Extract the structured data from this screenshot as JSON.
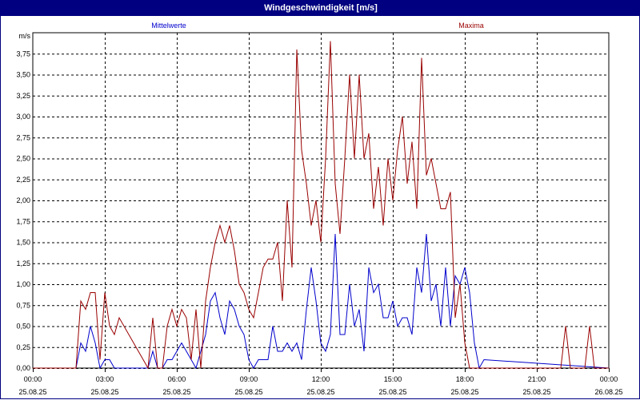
{
  "window": {
    "title": "Windgeschwindigkeit [m/s]"
  },
  "chart_data": {
    "type": "line",
    "title": "Windgeschwindigkeit [m/s]",
    "ylabel": "m/s",
    "ylim": [
      0,
      4.0
    ],
    "xlim": [
      0,
      24
    ],
    "grid": true,
    "y_ticks": [
      "0,00",
      "0,25",
      "0,50",
      "0,75",
      "1,00",
      "1,25",
      "1,50",
      "1,75",
      "2,00",
      "2,25",
      "2,50",
      "2,75",
      "3,00",
      "3,25",
      "3,50",
      "3,75"
    ],
    "x_ticks": [
      {
        "time": "00:00",
        "date": "25.08.25"
      },
      {
        "time": "03:00",
        "date": "25.08.25"
      },
      {
        "time": "06:00",
        "date": "25.08.25"
      },
      {
        "time": "09:00",
        "date": "25.08.25"
      },
      {
        "time": "12:00",
        "date": "25.08.25"
      },
      {
        "time": "15:00",
        "date": "25.08.25"
      },
      {
        "time": "18:00",
        "date": "25.08.25"
      },
      {
        "time": "21:00",
        "date": "25.08.25"
      },
      {
        "time": "00:00",
        "date": "26.08.25"
      }
    ],
    "colors": {
      "Mittelwerte": "#0000cc",
      "Maxima": "#990000",
      "titlebar": "#000080"
    },
    "series": [
      {
        "name": "Mittelwerte",
        "color": "#0000cc",
        "x": [
          0,
          1.8,
          2.0,
          2.2,
          2.4,
          2.6,
          2.8,
          3.0,
          3.2,
          3.4,
          4.8,
          5.0,
          5.2,
          5.4,
          5.6,
          5.8,
          6.0,
          6.2,
          6.4,
          6.6,
          6.8,
          7.0,
          7.2,
          7.4,
          7.6,
          7.8,
          8.0,
          8.2,
          8.4,
          8.6,
          8.8,
          9.0,
          9.2,
          9.4,
          9.6,
          9.8,
          10.0,
          10.2,
          10.4,
          10.6,
          10.8,
          11.0,
          11.2,
          11.4,
          11.6,
          11.8,
          12.0,
          12.2,
          12.4,
          12.6,
          12.8,
          13.0,
          13.2,
          13.4,
          13.6,
          13.8,
          14.0,
          14.2,
          14.4,
          14.6,
          14.8,
          15.0,
          15.2,
          15.4,
          15.6,
          15.8,
          16.0,
          16.2,
          16.4,
          16.6,
          16.8,
          17.0,
          17.2,
          17.4,
          17.6,
          17.8,
          18.0,
          18.2,
          18.4,
          18.6,
          18.8,
          24
        ],
        "values": [
          0,
          0,
          0.3,
          0.2,
          0.5,
          0.3,
          0,
          0.1,
          0.1,
          0,
          0,
          0.2,
          0,
          0,
          0.1,
          0.1,
          0.2,
          0.3,
          0.2,
          0.1,
          0,
          0.2,
          0.4,
          0.8,
          0.9,
          0.6,
          0.4,
          0.8,
          0.7,
          0.5,
          0.4,
          0.1,
          0,
          0.1,
          0.1,
          0.1,
          0.5,
          0.2,
          0.2,
          0.3,
          0.2,
          0.3,
          0.1,
          0.7,
          1.2,
          0.8,
          0.3,
          0.2,
          0.4,
          1.6,
          0.4,
          0.4,
          1.0,
          0.5,
          0.7,
          0.2,
          1.2,
          0.9,
          1.0,
          0.6,
          0.6,
          0.8,
          0.5,
          0.6,
          0.6,
          0.4,
          1.2,
          0.9,
          1.6,
          0.8,
          1.0,
          0.5,
          1.2,
          0.5,
          1.1,
          1.0,
          1.2,
          0.9,
          0.3,
          0,
          0.1,
          0
        ]
      },
      {
        "name": "Maxima",
        "color": "#990000",
        "x": [
          0,
          1.8,
          2.0,
          2.2,
          2.4,
          2.6,
          2.8,
          3.0,
          3.2,
          3.4,
          3.6,
          4.8,
          5.0,
          5.2,
          5.4,
          5.6,
          5.8,
          6.0,
          6.2,
          6.4,
          6.6,
          6.8,
          7.0,
          7.2,
          7.4,
          7.6,
          7.8,
          8.0,
          8.2,
          8.4,
          8.6,
          8.8,
          9.0,
          9.2,
          9.4,
          9.6,
          9.8,
          10.0,
          10.2,
          10.4,
          10.6,
          10.8,
          11.0,
          11.2,
          11.4,
          11.6,
          11.8,
          12.0,
          12.2,
          12.4,
          12.6,
          12.8,
          13.0,
          13.2,
          13.4,
          13.6,
          13.8,
          14.0,
          14.2,
          14.4,
          14.6,
          14.8,
          15.0,
          15.2,
          15.4,
          15.6,
          15.8,
          16.0,
          16.2,
          16.4,
          16.6,
          16.8,
          17.0,
          17.2,
          17.4,
          17.6,
          17.8,
          18.0,
          18.2,
          18.4,
          18.6,
          18.8,
          19.0,
          19.4,
          20.0,
          21.0,
          22.0,
          22.2,
          22.4,
          22.6,
          23.0,
          23.2,
          23.4,
          23.6,
          24
        ],
        "values": [
          0,
          0,
          0.8,
          0.7,
          0.9,
          0.9,
          0.1,
          0.9,
          0.5,
          0.4,
          0.6,
          0,
          0.6,
          0,
          0,
          0.5,
          0.7,
          0.5,
          0.7,
          0.6,
          0.1,
          0.7,
          0,
          0.8,
          1.2,
          1.5,
          1.7,
          1.5,
          1.7,
          1.4,
          1.0,
          0.9,
          0.7,
          0.6,
          0.9,
          1.2,
          1.3,
          1.3,
          1.5,
          0.8,
          2.0,
          1.2,
          3.8,
          2.6,
          2.2,
          1.7,
          2.0,
          1.5,
          2.5,
          3.9,
          2.2,
          1.6,
          2.5,
          3.5,
          2.5,
          3.5,
          2.5,
          2.8,
          1.9,
          2.4,
          1.7,
          2.5,
          2.0,
          2.6,
          3.0,
          2.2,
          2.7,
          1.9,
          3.7,
          2.3,
          2.5,
          2.2,
          1.9,
          1.9,
          2.1,
          0.6,
          1.0,
          0.3,
          0,
          0,
          0,
          0,
          0,
          0,
          0,
          0,
          0,
          0.5,
          0,
          0,
          0,
          0.5,
          0,
          0,
          0
        ]
      }
    ],
    "legend": [
      "Mittelwerte",
      "Maxima"
    ]
  }
}
